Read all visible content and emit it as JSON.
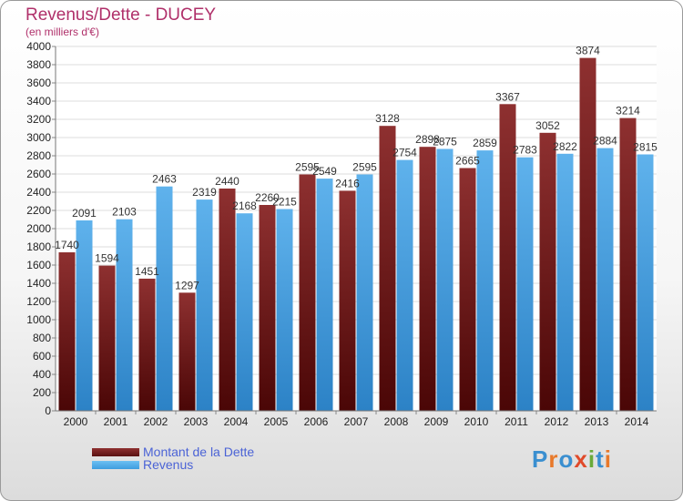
{
  "title": "Revenus/Dette - DUCEY",
  "subtitle": "(en milliers d'€)",
  "logo": {
    "letters": [
      "P",
      "r",
      "o",
      "x",
      "i",
      "t",
      "i"
    ],
    "colors": [
      "#3a8fd0",
      "#e8792a",
      "#3a8fd0",
      "#e04a2a",
      "#6aaa3a",
      "#3a8fd0",
      "#e8792a"
    ]
  },
  "colors": {
    "dette": "#6e1a1a",
    "revenus": "#3e9ddf",
    "dette_legend": "#5a1010",
    "revenus_legend": "#3e9ddf"
  },
  "chart_data": {
    "type": "bar",
    "categories": [
      "2000",
      "2001",
      "2002",
      "2003",
      "2004",
      "2005",
      "2006",
      "2007",
      "2008",
      "2009",
      "2010",
      "2011",
      "2012",
      "2013",
      "2014"
    ],
    "series": [
      {
        "name": "Montant de la Dette",
        "values": [
          1740,
          1594,
          1451,
          1297,
          2440,
          2260,
          2595,
          2416,
          3128,
          2898,
          2665,
          3367,
          3052,
          3874,
          3214
        ]
      },
      {
        "name": "Revenus",
        "values": [
          2091,
          2103,
          2463,
          2319,
          2168,
          2215,
          2549,
          2595,
          2754,
          2875,
          2859,
          2783,
          2822,
          2884,
          2815
        ]
      }
    ],
    "data_labels": [
      [
        "1740",
        "1594",
        "1451",
        "1297",
        "2440",
        "2260",
        "2595",
        "2416",
        "3128",
        "2898",
        "2665",
        "3367",
        "3052",
        "3874",
        "3214"
      ],
      [
        "2091",
        "2103",
        "2463",
        "2319",
        "2168",
        "2215",
        "2549",
        "2595",
        "2754",
        "2875",
        "2859",
        "2783",
        "2822",
        "2884",
        "2815"
      ]
    ],
    "y_ticks": [
      0,
      200,
      400,
      600,
      800,
      1000,
      1200,
      1400,
      1600,
      1800,
      2000,
      2200,
      2400,
      2600,
      2800,
      3000,
      3200,
      3400,
      3600,
      3800,
      4000
    ],
    "ylim": [
      0,
      4000
    ],
    "grid": true,
    "legend_position": "bottom-left"
  }
}
